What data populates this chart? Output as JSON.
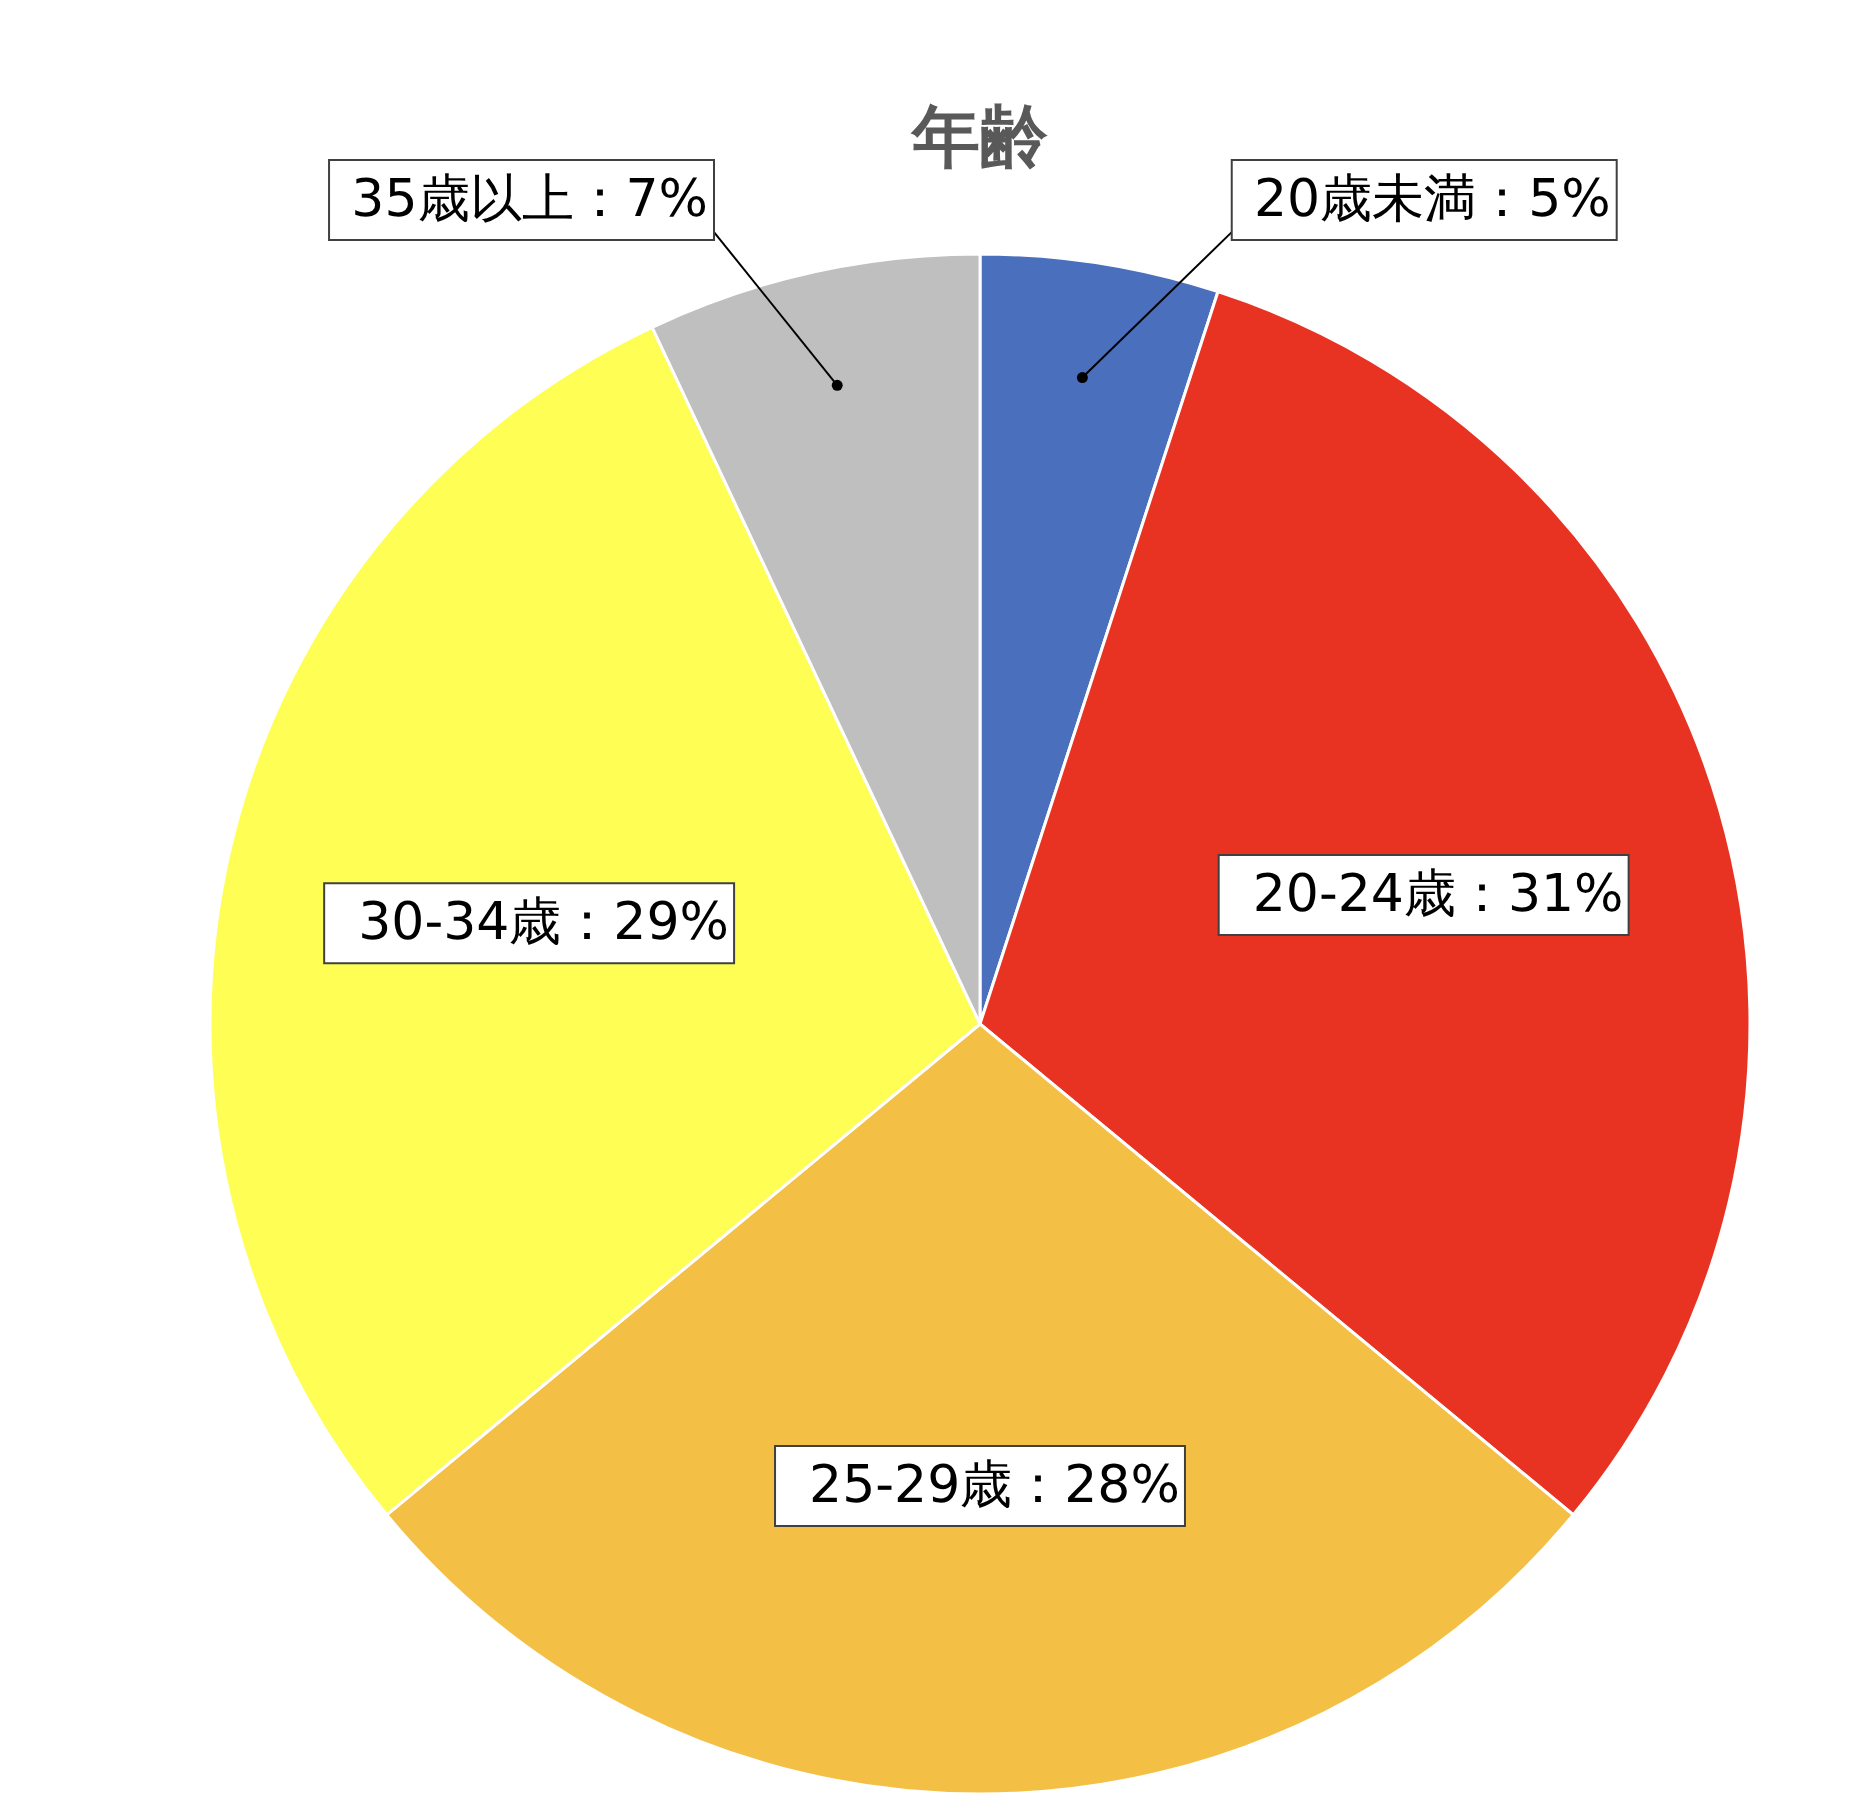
{
  "chart_data": {
    "type": "pie",
    "title": "年齢",
    "categories": [
      "20歳未満",
      "20-24歳",
      "25-29歳",
      "30-34歳",
      "35歳以上"
    ],
    "values": [
      5,
      31,
      28,
      29,
      7
    ],
    "colors": [
      "#4a6fbd",
      "#e83323",
      "#f3bf45",
      "#fefe54",
      "#bfbfbf"
    ],
    "value_labels": [
      "：5%",
      "：31%",
      "：28%",
      "：29%",
      "：7%"
    ]
  }
}
